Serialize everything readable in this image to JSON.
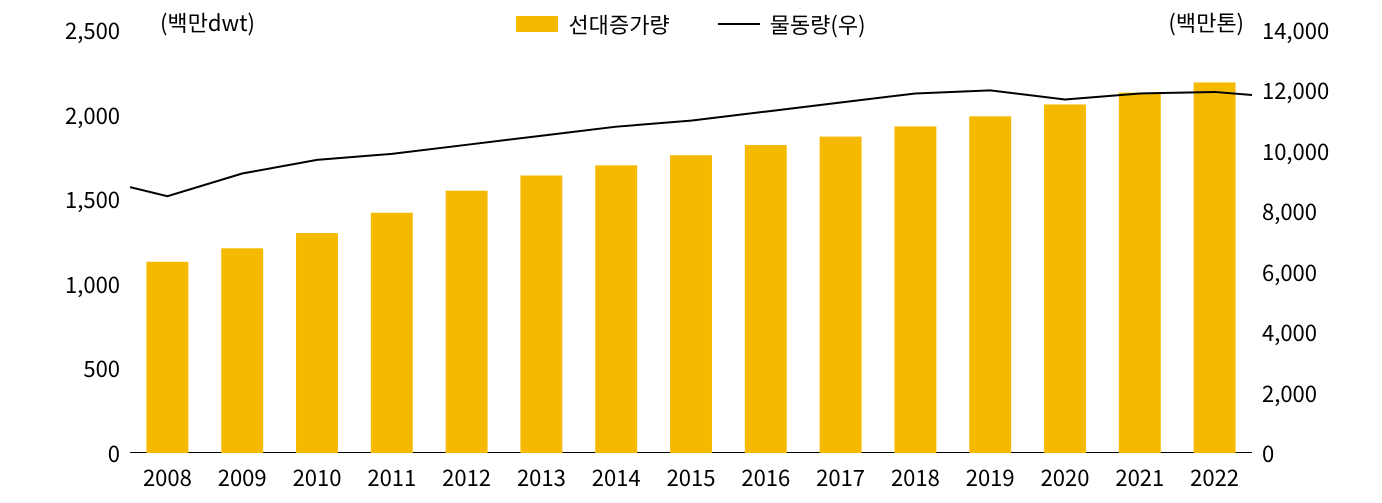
{
  "chart": {
    "type": "bar+line",
    "categories": [
      "2008",
      "2009",
      "2010",
      "2011",
      "2012",
      "2013",
      "2014",
      "2015",
      "2016",
      "2017",
      "2018",
      "2019",
      "2020",
      "2021",
      "2022"
    ],
    "bars": {
      "label": "선대증가량",
      "values": [
        1130,
        1210,
        1300,
        1420,
        1550,
        1640,
        1700,
        1760,
        1820,
        1870,
        1930,
        1990,
        2060,
        2130,
        2190
      ],
      "color": "#f5b900",
      "bar_width_ratio": 0.56
    },
    "line": {
      "label": "물동량(우)",
      "values": [
        8800,
        8500,
        9250,
        9700,
        9900,
        10200,
        10500,
        10800,
        11000,
        11300,
        11600,
        11900,
        12000,
        11700,
        11900,
        11950,
        11850
      ],
      "x_anchors": [
        "pre",
        "2008",
        "2009",
        "2010",
        "2011",
        "2012",
        "2013",
        "2014",
        "2015",
        "2016",
        "2017",
        "2018",
        "2019",
        "2020",
        "2021",
        "2022",
        "post"
      ],
      "color": "#000000",
      "stroke_width": 2
    },
    "y_left": {
      "unit": "(백만dwt)",
      "min": 0,
      "max": 2500,
      "step": 500,
      "tick_labels": [
        "0",
        "500",
        "1,000",
        "1,500",
        "2,000",
        "2,500"
      ]
    },
    "y_right": {
      "unit": "(백만톤)",
      "min": 0,
      "max": 14000,
      "step": 2000,
      "tick_labels": [
        "0",
        "2,000",
        "4,000",
        "6,000",
        "8,000",
        "10,000",
        "12,000",
        "14,000"
      ]
    },
    "style": {
      "background": "#ffffff",
      "axis_color": "#000000",
      "tick_color": "#000000",
      "tick_font_size": 22
    }
  }
}
